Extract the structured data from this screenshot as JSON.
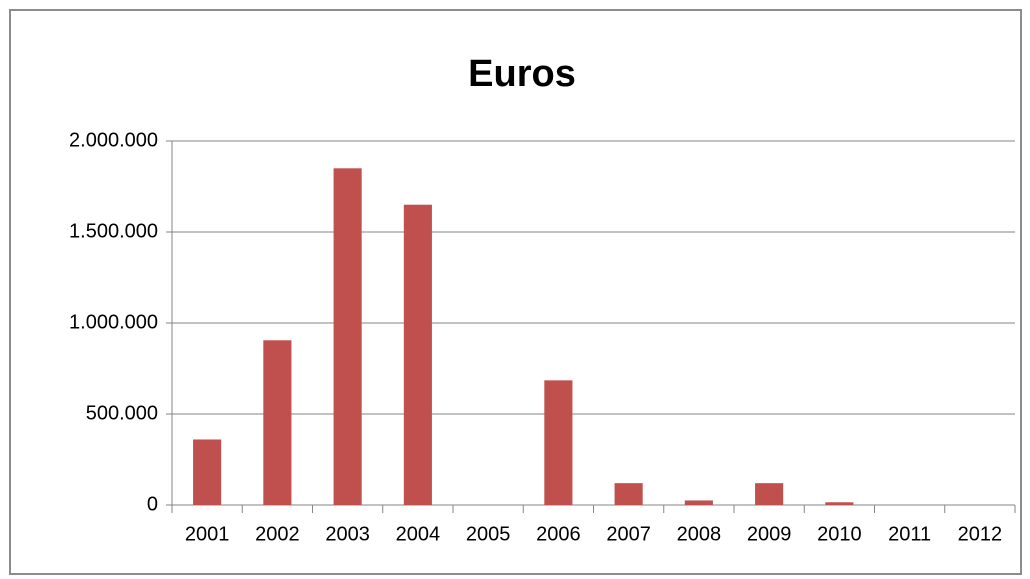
{
  "chart_data": {
    "type": "bar",
    "title": "Euros",
    "categories": [
      "2001",
      "2002",
      "2003",
      "2004",
      "2005",
      "2006",
      "2007",
      "2008",
      "2009",
      "2010",
      "2011",
      "2012"
    ],
    "values": [
      360000,
      905000,
      1850000,
      1650000,
      0,
      685000,
      120000,
      25000,
      120000,
      15000,
      0,
      0
    ],
    "color": "#c0504d",
    "ylim": [
      0,
      2000000
    ],
    "yticks": [
      0,
      {
        "value": 500000,
        "label": "500.000"
      },
      {
        "value": 1000000,
        "label": "1.000.000"
      },
      {
        "value": 1500000,
        "label": "1.500.000"
      },
      {
        "value": 2000000,
        "label": "2.000.000"
      }
    ],
    "grid": true
  }
}
